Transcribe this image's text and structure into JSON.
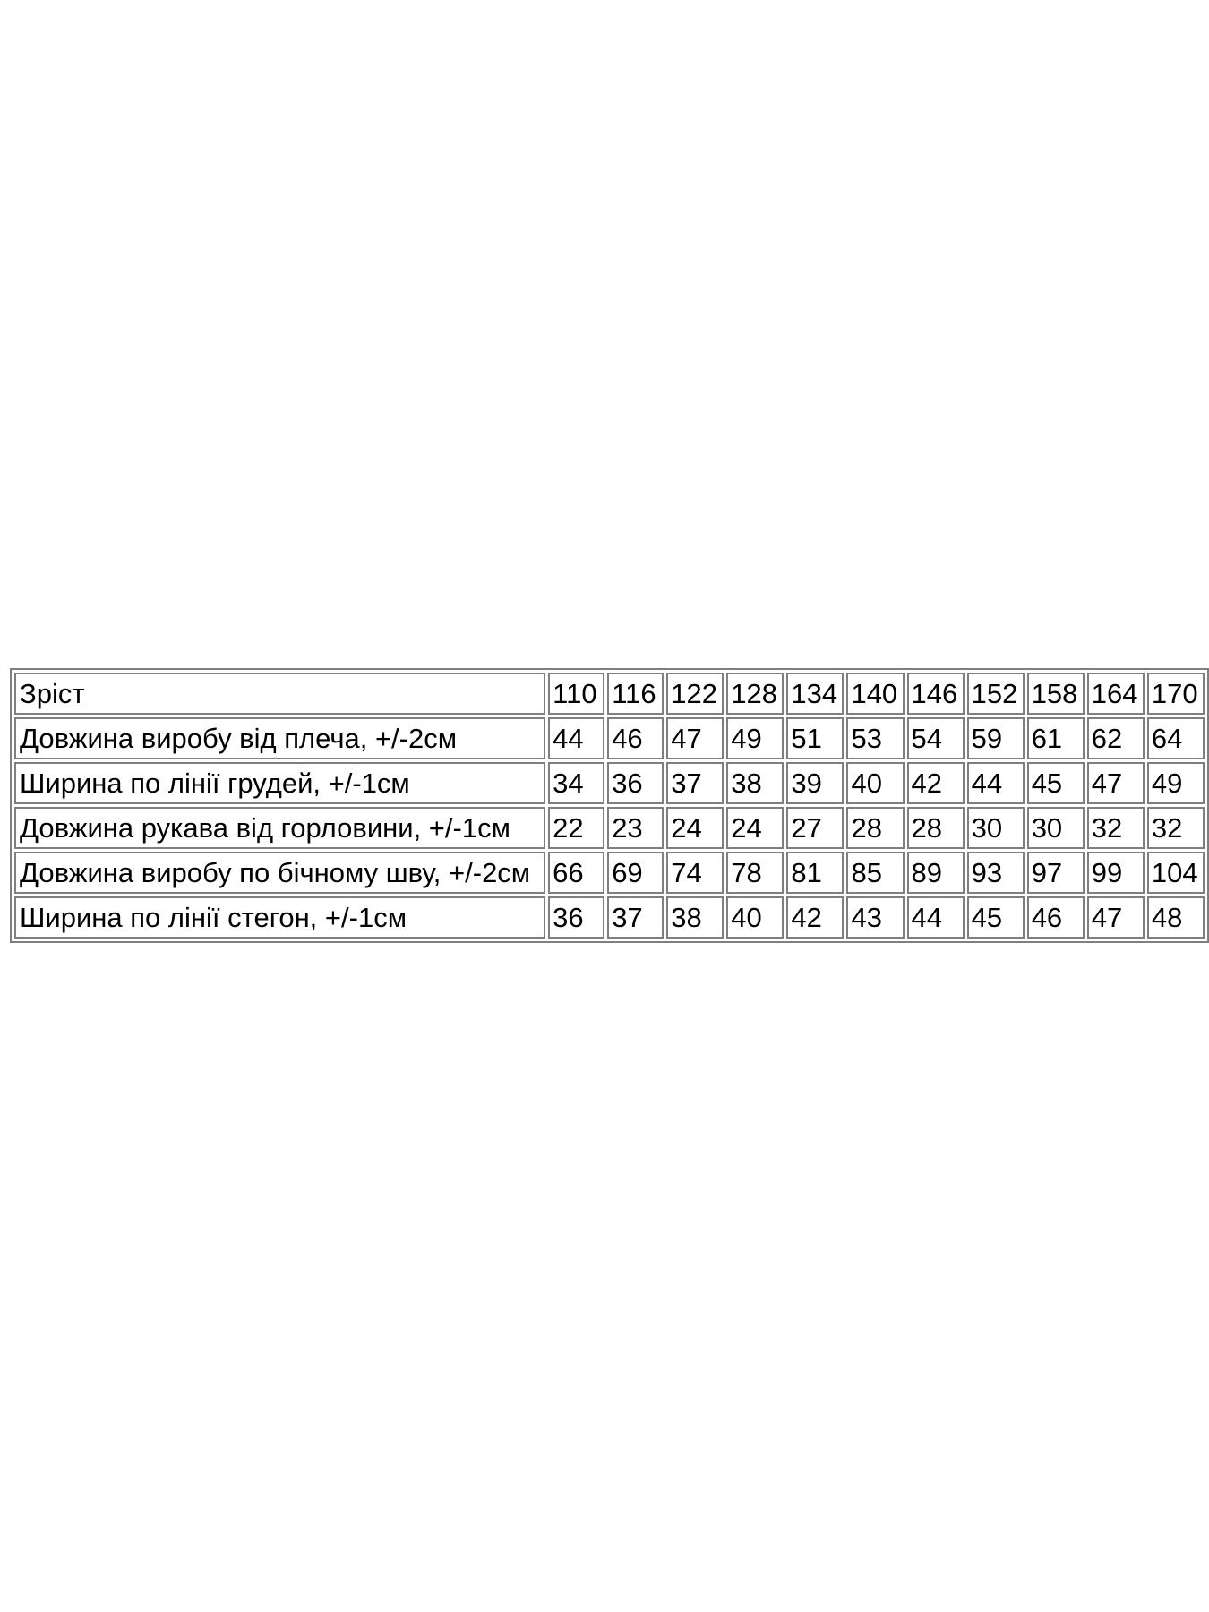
{
  "page": {
    "background_color": "#ffffff",
    "text_color": "#000000",
    "table_border_color": "#7f7f7f"
  },
  "size_table": {
    "header": {
      "label": "Зріст",
      "sizes": [
        "110",
        "116",
        "122",
        "128",
        "134",
        "140",
        "146",
        "152",
        "158",
        "164",
        "170"
      ]
    },
    "rows": [
      {
        "label": "Довжина виробу від плеча, +/-2см",
        "values": [
          "44",
          "46",
          "47",
          "49",
          "51",
          "53",
          "54",
          "59",
          "61",
          "62",
          "64"
        ]
      },
      {
        "label": "Ширина по лінії грудей, +/-1см",
        "values": [
          "34",
          "36",
          "37",
          "38",
          "39",
          "40",
          "42",
          "44",
          "45",
          "47",
          "49"
        ]
      },
      {
        "label": "Довжина рукава від горловини, +/-1см",
        "values": [
          "22",
          "23",
          "24",
          "24",
          "27",
          "28",
          "28",
          "30",
          "30",
          "32",
          "32"
        ]
      },
      {
        "label": "Довжина виробу по бічному шву, +/-2см",
        "values": [
          "66",
          "69",
          "74",
          "78",
          "81",
          "85",
          "89",
          "93",
          "97",
          "99",
          "104"
        ]
      },
      {
        "label": "Ширина по лінії стегон, +/-1см",
        "values": [
          "36",
          "37",
          "38",
          "40",
          "42",
          "43",
          "44",
          "45",
          "46",
          "47",
          "48"
        ]
      }
    ]
  }
}
